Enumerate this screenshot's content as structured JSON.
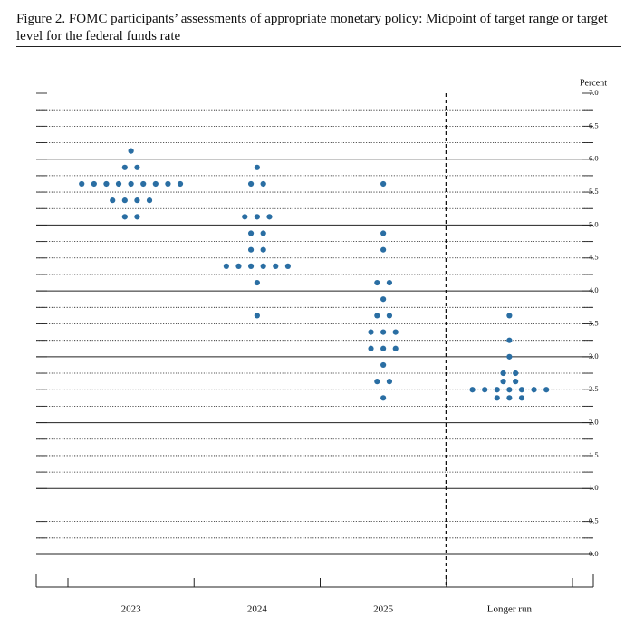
{
  "chart_data": {
    "type": "dot",
    "title": "Figure 2.  FOMC participants’ assessments of appropriate monetary policy:  Midpoint of target range or target level for the federal funds rate",
    "y_axis_label": "Percent",
    "categories": [
      "2023",
      "2024",
      "2025",
      "Longer run"
    ],
    "color": "#2a6ea3",
    "values": [
      [
        6.125,
        5.875,
        5.875,
        5.625,
        5.625,
        5.625,
        5.625,
        5.625,
        5.625,
        5.625,
        5.625,
        5.625,
        5.375,
        5.375,
        5.375,
        5.375,
        5.125,
        5.125
      ],
      [
        5.875,
        5.625,
        5.625,
        5.125,
        5.125,
        5.125,
        4.875,
        4.875,
        4.625,
        4.625,
        4.375,
        4.375,
        4.375,
        4.375,
        4.375,
        4.375,
        4.125,
        3.625
      ],
      [
        5.625,
        4.875,
        4.625,
        4.125,
        4.125,
        3.875,
        3.625,
        3.625,
        3.375,
        3.375,
        3.375,
        3.125,
        3.125,
        3.125,
        2.875,
        2.625,
        2.625,
        2.375
      ],
      [
        3.625,
        3.25,
        3,
        2.75,
        2.75,
        2.625,
        2.625,
        2.5,
        2.5,
        2.5,
        2.5,
        2.5,
        2.5,
        2.5,
        2.375,
        2.375,
        2.375
      ]
    ],
    "ylim": [
      0,
      7
    ],
    "yticks": [
      {
        "value": 0,
        "label": "0.0"
      },
      {
        "value": 0.5,
        "label": "0.5"
      },
      {
        "value": 1,
        "label": "1.0"
      },
      {
        "value": 1.5,
        "label": "1.5"
      },
      {
        "value": 2,
        "label": "2.0"
      },
      {
        "value": 2.5,
        "label": "2.5"
      },
      {
        "value": 3,
        "label": "3.0"
      },
      {
        "value": 3.5,
        "label": "3.5"
      },
      {
        "value": 4,
        "label": "4.0"
      },
      {
        "value": 4.5,
        "label": "4.5"
      },
      {
        "value": 5,
        "label": "5.0"
      },
      {
        "value": 5.5,
        "label": "5.5"
      },
      {
        "value": 6,
        "label": "6.0"
      },
      {
        "value": 6.5,
        "label": "6.5"
      },
      {
        "value": 7,
        "label": "7.0"
      }
    ],
    "grid": true,
    "minor_grid": true,
    "separator_before_last": true
  }
}
